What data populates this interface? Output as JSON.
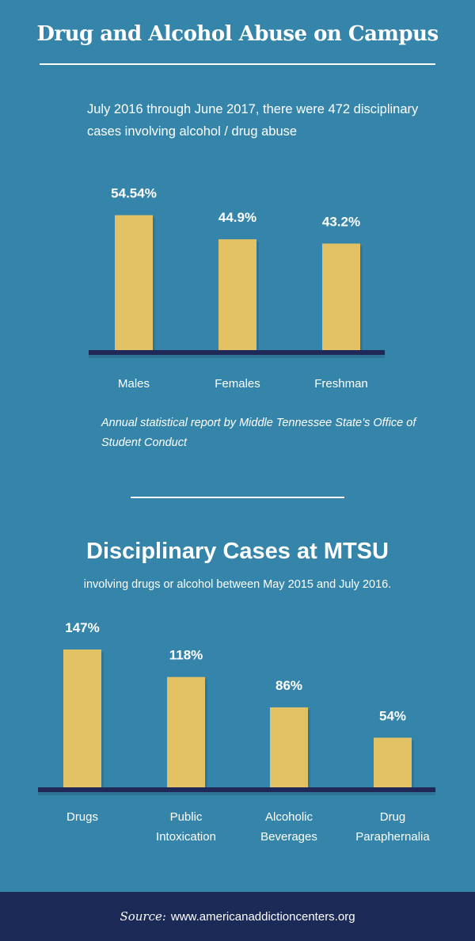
{
  "header": {
    "title": "Drug and Alcohol Abuse on Campus",
    "intro": "July 2016 through June 2017, there were 472 disciplinary cases involving alcohol / drug abuse"
  },
  "note": "Annual statistical report by Middle Tennessee State’s Office of Student Conduct",
  "section2": {
    "title": "Disciplinary Cases at MTSU",
    "subtitle": "involving drugs or alcohol between May 2015 and July 2016."
  },
  "footer": {
    "source_label": "Source:",
    "source_url": "www.americanaddictioncenters.org"
  },
  "colors": {
    "background": "#3585ab",
    "bar": "#e2c264",
    "baseline": "#1f2856",
    "footer": "#1c2a58"
  },
  "chart_data": [
    {
      "type": "bar",
      "categories": [
        [
          "Males"
        ],
        [
          "Females"
        ],
        [
          "Freshman"
        ]
      ],
      "values": [
        54.54,
        44.9,
        43.2
      ],
      "labels": [
        "54.54%",
        "44.9%",
        "43.2%"
      ],
      "ylim": [
        0,
        100
      ],
      "grid": false
    },
    {
      "type": "bar",
      "categories": [
        [
          "Drugs"
        ],
        [
          "Public",
          "Intoxication"
        ],
        [
          "Alcoholic",
          "Beverages"
        ],
        [
          "Drug",
          "Paraphernalia"
        ]
      ],
      "values": [
        147,
        118,
        86,
        54
      ],
      "labels": [
        "147%",
        "118%",
        "86%",
        "54%"
      ],
      "ylim": [
        0,
        147
      ],
      "grid": false
    }
  ]
}
